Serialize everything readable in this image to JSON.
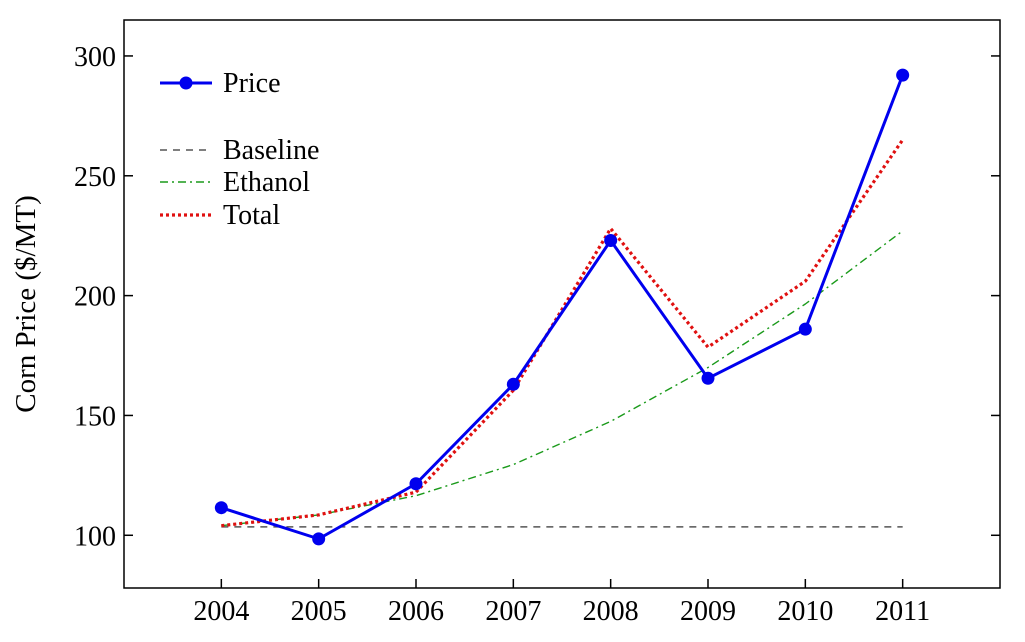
{
  "chart_data": {
    "type": "line",
    "title": "",
    "xlabel": "",
    "ylabel": "Corn Price ($/MT)",
    "x": [
      "2004",
      "2005",
      "2006",
      "2007",
      "2008",
      "2009",
      "2010",
      "2011"
    ],
    "xlim": [
      2003,
      2012
    ],
    "ylim": [
      78,
      315
    ],
    "yticks": [
      100,
      150,
      200,
      250,
      300
    ],
    "grid": false,
    "legend_position": "top-left",
    "series": [
      {
        "name": "Price",
        "style": "solid-markers",
        "color": "#0000ee",
        "values": [
          111.5,
          98.5,
          121.5,
          163,
          223,
          165.5,
          186,
          292
        ]
      },
      {
        "name": "Baseline",
        "style": "dashed",
        "color": "#555555",
        "values": [
          103.5,
          103.5,
          103.5,
          103.5,
          103.5,
          103.5,
          103.5,
          103.5
        ]
      },
      {
        "name": "Ethanol",
        "style": "dashdot",
        "color": "#1a9a1a",
        "values": [
          104,
          108.5,
          116.5,
          129.5,
          147.5,
          170,
          196.5,
          227
        ]
      },
      {
        "name": "Total",
        "style": "dotted",
        "color": "#e01010",
        "values": [
          104,
          108.5,
          118,
          160.5,
          228,
          178.5,
          206,
          265
        ]
      }
    ]
  }
}
